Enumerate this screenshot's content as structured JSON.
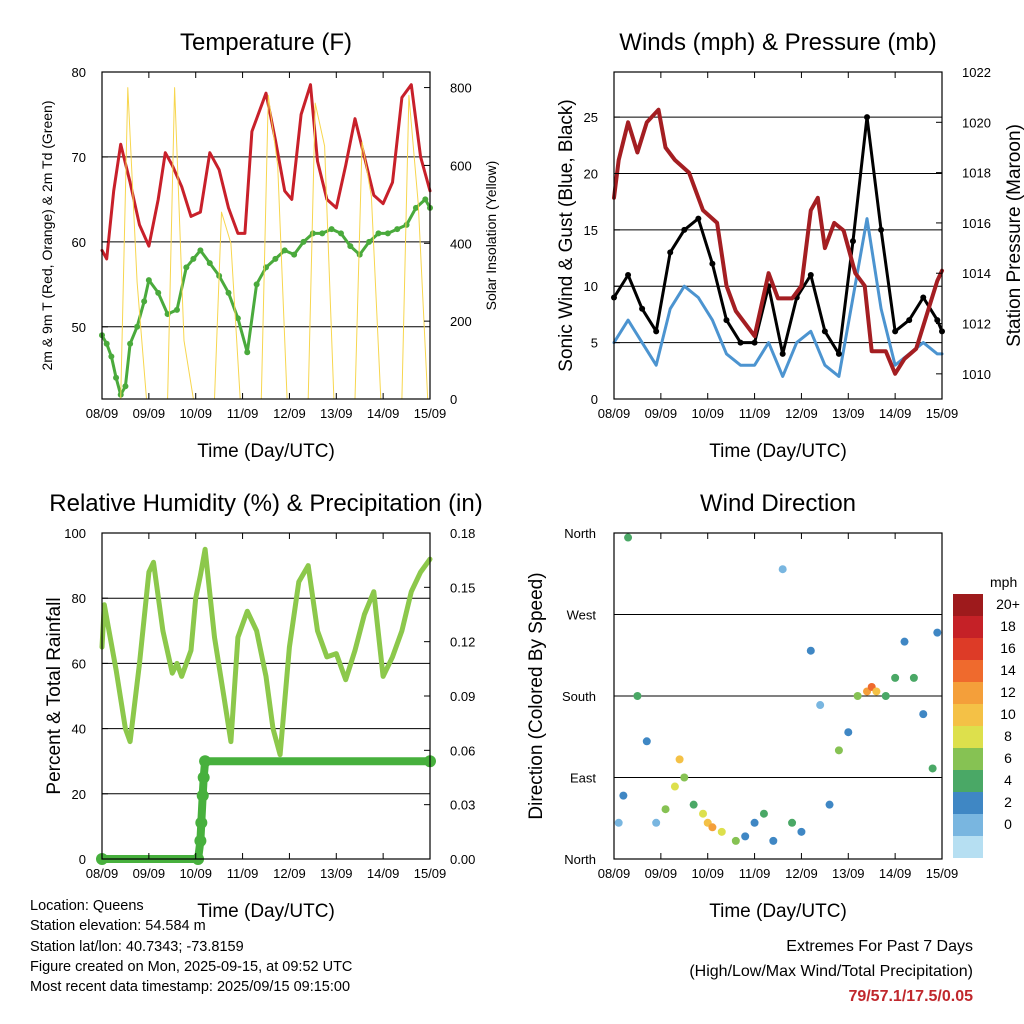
{
  "info": {
    "location": "Location: Queens",
    "elevation": "Station elevation: 54.584 m",
    "latlon": "Station lat/lon: 40.7343; -73.8159",
    "created": "Figure created on Mon, 2025-09-15, at 09:52 UTC",
    "recent": "Most recent data timestamp: 2025/09/15 09:15:00"
  },
  "extremes": {
    "title": "Extremes For Past 7 Days",
    "subtitle": "(High/Low/Max Wind/Total Precipitation)",
    "values": "79/57.1/17.5/0.05"
  },
  "chart_data": [
    {
      "type": "line",
      "title": "Temperature (F)",
      "xlabel": "Time (Day/UTC)",
      "ylabel": "2m & 9m T (Red, Orange) & 2m Td (Green)",
      "ylabel_right": "Solar Insolation (Yellow)",
      "x_ticks": [
        "08/09",
        "09/09",
        "10/09",
        "11/09",
        "12/09",
        "13/09",
        "14/09",
        "15/09"
      ],
      "ylim": [
        41.5,
        80
      ],
      "y_ticks": [
        50,
        60,
        70,
        80
      ],
      "ylim_right": [
        0,
        840
      ],
      "y_ticks_right": [
        0,
        200,
        400,
        600,
        800
      ],
      "grid": true,
      "series": [
        {
          "name": "2m T",
          "color": "#c8202a",
          "axis": "left",
          "x": [
            0,
            0.1,
            0.25,
            0.4,
            0.6,
            0.8,
            1.0,
            1.2,
            1.35,
            1.5,
            1.7,
            1.9,
            2.1,
            2.3,
            2.5,
            2.7,
            2.9,
            3.05,
            3.2,
            3.5,
            3.7,
            3.9,
            4.05,
            4.25,
            4.45,
            4.6,
            4.8,
            5.0,
            5.2,
            5.4,
            5.6,
            5.8,
            6.0,
            6.2,
            6.4,
            6.6,
            6.8,
            7.0
          ],
          "y": [
            59,
            58,
            66,
            71.5,
            67,
            62,
            59.5,
            65,
            70.5,
            69,
            66.5,
            63,
            63.5,
            70.5,
            68.5,
            64,
            61,
            61,
            73,
            77.5,
            72,
            66,
            65,
            75,
            78.5,
            69.5,
            65,
            64,
            69,
            74.5,
            70,
            65.5,
            64.5,
            67,
            77,
            78.5,
            70,
            66
          ]
        },
        {
          "name": "2m Td",
          "color": "#4aaa3c",
          "axis": "left",
          "x": [
            0,
            0.1,
            0.2,
            0.3,
            0.4,
            0.5,
            0.6,
            0.75,
            0.9,
            1.0,
            1.2,
            1.4,
            1.6,
            1.8,
            1.95,
            2.1,
            2.3,
            2.5,
            2.7,
            2.9,
            3.1,
            3.3,
            3.5,
            3.7,
            3.9,
            4.1,
            4.3,
            4.5,
            4.7,
            4.9,
            5.1,
            5.3,
            5.5,
            5.7,
            5.9,
            6.1,
            6.3,
            6.5,
            6.7,
            6.9,
            7.0
          ],
          "y": [
            49,
            48,
            46.5,
            44,
            42,
            43,
            48,
            50,
            53,
            55.5,
            54,
            51.5,
            52,
            57,
            58,
            59,
            57.5,
            56,
            54,
            51,
            47,
            55,
            57,
            58,
            59,
            58.5,
            60,
            61,
            61,
            61.5,
            61,
            59.5,
            58.5,
            60,
            61,
            61,
            61.5,
            62,
            64,
            65,
            64
          ]
        },
        {
          "name": "Solar Insolation",
          "color": "#f7d64e",
          "axis": "right",
          "x": [
            0,
            0.4,
            0.55,
            0.75,
            0.95,
            1.4,
            1.55,
            1.75,
            1.95,
            2.4,
            2.55,
            2.75,
            2.95,
            3.4,
            3.55,
            3.75,
            3.95,
            4.4,
            4.55,
            4.75,
            4.95,
            5.4,
            5.55,
            5.75,
            5.95,
            6.4,
            6.55,
            6.75,
            6.95,
            7.0
          ],
          "y": [
            0,
            0,
            800,
            300,
            0,
            0,
            800,
            150,
            0,
            0,
            480,
            400,
            0,
            0,
            780,
            600,
            0,
            0,
            760,
            650,
            0,
            0,
            660,
            520,
            0,
            0,
            780,
            500,
            0,
            0
          ]
        }
      ]
    },
    {
      "type": "line",
      "title": "Winds (mph) & Pressure (mb)",
      "xlabel": "Time (Day/UTC)",
      "ylabel": "Sonic Wind & Gust (Blue, Black)",
      "ylabel_right": "Station Pressure (Maroon)",
      "x_ticks": [
        "08/09",
        "09/09",
        "10/09",
        "11/09",
        "12/09",
        "13/09",
        "14/09",
        "15/09"
      ],
      "ylim": [
        0,
        29
      ],
      "y_ticks": [
        0,
        5,
        10,
        15,
        20,
        25
      ],
      "ylim_right": [
        1009,
        1022
      ],
      "y_ticks_right": [
        1010,
        1012,
        1014,
        1016,
        1018,
        1020,
        1022
      ],
      "grid": true,
      "series": [
        {
          "name": "Sonic Wind",
          "color": "#4c94d0",
          "axis": "left",
          "x": [
            0,
            0.3,
            0.6,
            0.9,
            1.2,
            1.5,
            1.8,
            2.1,
            2.4,
            2.7,
            3.0,
            3.3,
            3.6,
            3.9,
            4.2,
            4.5,
            4.8,
            5.1,
            5.4,
            5.7,
            6.0,
            6.3,
            6.6,
            6.9,
            7.0
          ],
          "y": [
            5,
            7,
            5,
            3,
            8,
            10,
            9,
            7,
            4,
            3,
            3,
            5,
            2,
            5,
            6,
            3,
            2,
            9,
            16,
            8,
            3,
            4,
            5,
            4,
            4
          ]
        },
        {
          "name": "Gust",
          "color": "#000000",
          "axis": "left",
          "x": [
            0,
            0.3,
            0.6,
            0.9,
            1.2,
            1.5,
            1.8,
            2.1,
            2.4,
            2.7,
            3.0,
            3.3,
            3.6,
            3.9,
            4.2,
            4.5,
            4.8,
            5.1,
            5.4,
            5.7,
            6.0,
            6.3,
            6.6,
            6.9,
            7.0
          ],
          "y": [
            9,
            11,
            8,
            6,
            13,
            15,
            16,
            12,
            7,
            5,
            5,
            10,
            4,
            9,
            11,
            6,
            4,
            14,
            25,
            15,
            6,
            7,
            9,
            7,
            6
          ]
        },
        {
          "name": "Station Pressure",
          "color": "#a41e22",
          "axis": "right",
          "x": [
            0,
            0.1,
            0.3,
            0.5,
            0.7,
            0.95,
            1.1,
            1.3,
            1.6,
            1.9,
            2.2,
            2.4,
            2.6,
            3.0,
            3.3,
            3.5,
            3.8,
            4.0,
            4.2,
            4.35,
            4.5,
            4.7,
            4.9,
            5.15,
            5.35,
            5.5,
            5.8,
            6.0,
            6.2,
            6.45,
            6.7,
            6.9,
            7.0
          ],
          "y": [
            1017,
            1018.5,
            1020,
            1018.8,
            1020,
            1020.5,
            1019,
            1018.5,
            1018,
            1016.5,
            1016,
            1013.5,
            1012.5,
            1011.5,
            1014,
            1013,
            1013,
            1013.5,
            1016.5,
            1017,
            1015,
            1016,
            1015.7,
            1014,
            1013.5,
            1010.9,
            1010.9,
            1010,
            1010.6,
            1011,
            1012.5,
            1013.7,
            1014.1
          ]
        }
      ]
    },
    {
      "type": "line",
      "title": "Relative Humidity (%) & Precipitation (in)",
      "xlabel": "Time (Day/UTC)",
      "ylabel": "Percent & Total Rainfall",
      "x_ticks": [
        "08/09",
        "09/09",
        "10/09",
        "11/09",
        "12/09",
        "13/09",
        "14/09",
        "15/09"
      ],
      "ylim": [
        0,
        100
      ],
      "y_ticks": [
        0,
        20,
        40,
        60,
        80,
        100
      ],
      "ylim_right": [
        0,
        0.18
      ],
      "y_ticks_right": [
        "0.00",
        "0.03",
        "0.06",
        "0.09",
        "0.12",
        "0.15",
        "0.18"
      ],
      "grid": true,
      "series": [
        {
          "name": "Relative Humidity",
          "color": "#8cc84b",
          "axis": "left",
          "x": [
            0,
            0.05,
            0.15,
            0.3,
            0.5,
            0.6,
            0.8,
            1.0,
            1.1,
            1.3,
            1.5,
            1.6,
            1.7,
            1.9,
            2.0,
            2.1,
            2.2,
            2.4,
            2.6,
            2.75,
            2.9,
            3.1,
            3.3,
            3.5,
            3.65,
            3.8,
            4.0,
            4.2,
            4.4,
            4.6,
            4.8,
            5.0,
            5.2,
            5.4,
            5.6,
            5.8,
            6.0,
            6.2,
            6.4,
            6.6,
            6.8,
            7.0
          ],
          "y": [
            65,
            78,
            70,
            58,
            40,
            36,
            60,
            88,
            91,
            70,
            57,
            60,
            56,
            64,
            80,
            87,
            95,
            68,
            50,
            36,
            68,
            76,
            70,
            56,
            40,
            32,
            65,
            85,
            90,
            70,
            62,
            63,
            55,
            64,
            75,
            82,
            56,
            62,
            70,
            82,
            88,
            92
          ]
        },
        {
          "name": "Total Precipitation",
          "color": "#47b03d",
          "axis": "right",
          "x": [
            0,
            2.05,
            2.1,
            2.12,
            2.15,
            2.17,
            2.2,
            7.0
          ],
          "y": [
            0,
            0,
            0.01,
            0.02,
            0.035,
            0.045,
            0.054,
            0.054
          ]
        }
      ]
    },
    {
      "type": "scatter",
      "title": "Wind Direction",
      "xlabel": "Time (Day/UTC)",
      "ylabel": "Direction (Colored By Speed)",
      "x_ticks": [
        "08/09",
        "09/09",
        "10/09",
        "11/09",
        "12/09",
        "13/09",
        "14/09",
        "15/09"
      ],
      "y_categories": [
        "North",
        "East",
        "South",
        "West",
        "North"
      ],
      "ylim": [
        0,
        360
      ],
      "grid": true,
      "colorbar": {
        "title": "mph",
        "labels": [
          "20+",
          "18",
          "16",
          "14",
          "12",
          "10",
          "8",
          "6",
          "4",
          "2",
          "0"
        ],
        "colors": [
          "#9e1a1c",
          "#c52127",
          "#dd3b27",
          "#ef6a2d",
          "#f49f3a",
          "#f4c146",
          "#dde04c",
          "#86c253",
          "#4aa866",
          "#3f87c4",
          "#79b6e0",
          "#b6dff2"
        ]
      },
      "series": [
        {
          "name": "direction",
          "x": [
            0.1,
            0.2,
            0.3,
            0.5,
            0.7,
            0.9,
            1.1,
            1.3,
            1.4,
            1.5,
            1.7,
            1.9,
            2.0,
            2.1,
            2.3,
            2.6,
            2.8,
            3.0,
            3.2,
            3.4,
            3.6,
            3.8,
            4.0,
            4.2,
            4.4,
            4.6,
            4.8,
            5.0,
            5.2,
            5.4,
            5.5,
            5.6,
            5.8,
            6.0,
            6.2,
            6.4,
            6.6,
            6.8,
            6.9
          ],
          "y": [
            40,
            70,
            355,
            180,
            130,
            40,
            55,
            80,
            110,
            90,
            60,
            50,
            40,
            35,
            30,
            20,
            25,
            40,
            50,
            20,
            320,
            40,
            30,
            230,
            170,
            60,
            120,
            140,
            180,
            185,
            190,
            185,
            180,
            200,
            240,
            200,
            160,
            100,
            250
          ],
          "speed": [
            3,
            5,
            7,
            6,
            4,
            3,
            9,
            11,
            13,
            8,
            7,
            11,
            12,
            15,
            10,
            8,
            4,
            5,
            6,
            5,
            3,
            6,
            4,
            4,
            3,
            5,
            8,
            4,
            9,
            14,
            17,
            12,
            7,
            6,
            4,
            7,
            5,
            6,
            4
          ]
        }
      ]
    }
  ]
}
